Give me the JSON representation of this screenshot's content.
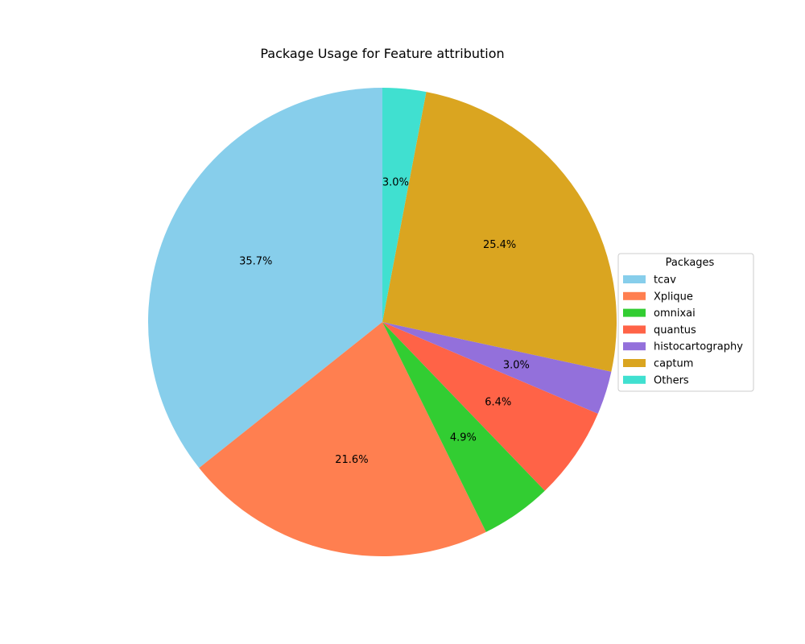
{
  "chart_data": {
    "type": "pie",
    "title": "Package Usage for Feature attribution",
    "legend_title": "Packages",
    "legend_position": "center-right",
    "start_angle_deg": 90,
    "direction": "counterclockwise",
    "slices": [
      {
        "label": "tcav",
        "value": 35.7,
        "pct_label": "35.7%",
        "color": "#87CEEB"
      },
      {
        "label": "Xplique",
        "value": 21.6,
        "pct_label": "21.6%",
        "color": "#FF7F50"
      },
      {
        "label": "omnixai",
        "value": 4.9,
        "pct_label": "4.9%",
        "color": "#32CD32"
      },
      {
        "label": "quantus",
        "value": 6.4,
        "pct_label": "6.4%",
        "color": "#FF6347"
      },
      {
        "label": "histocartography",
        "value": 3.0,
        "pct_label": "3.0%",
        "color": "#9370DB"
      },
      {
        "label": "captum",
        "value": 25.4,
        "pct_label": "25.4%",
        "color": "#DAA520"
      },
      {
        "label": "Others",
        "value": 3.0,
        "pct_label": "3.0%",
        "color": "#40E0D0"
      }
    ]
  }
}
